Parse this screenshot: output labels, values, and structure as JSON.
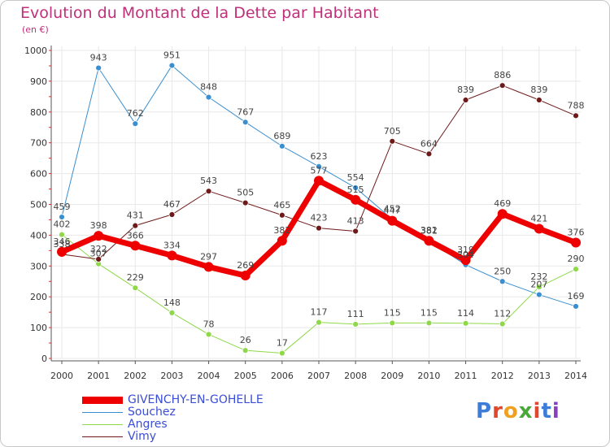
{
  "title": "Evolution du Montant de la Dette par Habitant",
  "subtitle": "(en €)",
  "logo_text": "Proxiti",
  "colors": {
    "title": "#c0307a",
    "legend_text": "#3a4dd6",
    "givenchy": "#ee0000",
    "souchez": "#3a8fd0",
    "angres": "#8fd84a",
    "vimy": "#6e1a1a",
    "axis": "#555555",
    "grid": "#e8e8e8"
  },
  "chart_data": {
    "type": "line",
    "title": "Evolution du Montant de la Dette par Habitant",
    "subtitle": "(en €)",
    "x": [
      "2000",
      "2001",
      "2002",
      "2003",
      "2004",
      "2005",
      "2006",
      "2007",
      "2008",
      "2009",
      "2010",
      "2011",
      "2012",
      "2013",
      "2014"
    ],
    "ylim": [
      0,
      1000
    ],
    "yticks": [
      0,
      100,
      200,
      300,
      400,
      500,
      600,
      700,
      800,
      900,
      1000
    ],
    "grid": true,
    "legend_position": "bottom-left",
    "series": [
      {
        "name": "GIVENCHY-EN-GOHELLE",
        "key": "givenchy",
        "values": [
          346,
          398,
          366,
          334,
          297,
          269,
          382,
          577,
          515,
          447,
          382,
          319,
          469,
          421,
          376
        ]
      },
      {
        "name": "Souchez",
        "key": "souchez",
        "values": [
          459,
          943,
          762,
          951,
          848,
          767,
          689,
          623,
          554,
          452,
          381,
          304,
          250,
          207,
          169
        ]
      },
      {
        "name": "Angres",
        "key": "angres",
        "values": [
          402,
          307,
          229,
          148,
          78,
          26,
          17,
          117,
          111,
          115,
          115,
          114,
          112,
          232,
          290
        ]
      },
      {
        "name": "Vimy",
        "key": "vimy",
        "values": [
          338,
          322,
          431,
          467,
          543,
          505,
          465,
          423,
          413,
          705,
          664,
          839,
          886,
          839,
          788
        ]
      }
    ]
  }
}
